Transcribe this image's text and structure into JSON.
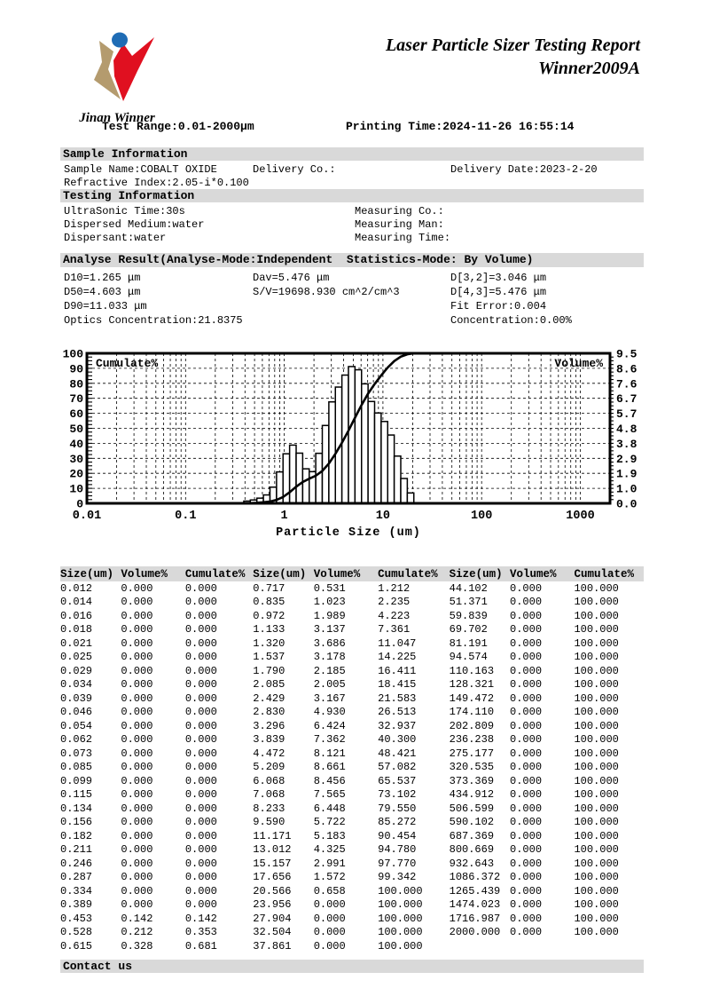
{
  "header": {
    "logo_text": "Jinan Winner",
    "logo_colors": {
      "blue": "#1f6cb5",
      "red": "#e01020",
      "tan": "#b49b6e"
    },
    "title_line1": "Laser Particle Sizer Testing Report",
    "title_line2": "Winner2009A",
    "test_range": "Test Range:0.01-2000μm",
    "printing_time": "Printing Time:2024-11-26 16:55:14"
  },
  "sample_info": {
    "section_title": "Sample Information",
    "sample_name": "Sample Name:COBALT OXIDE",
    "delivery_co": "Delivery Co.:",
    "delivery_date": "Delivery Date:2023-2-20",
    "refractive_index": "Refractive Index:2.05-i*0.100"
  },
  "testing_info": {
    "section_title": "Testing Information",
    "ultrasonic_time": "UltraSonic Time:30s",
    "dispersed_medium": "Dispersed Medium:water",
    "dispersant": "Dispersant:water",
    "measuring_co": "Measuring Co.:",
    "measuring_man": "Measuring Man:",
    "measuring_time": "Measuring Time:"
  },
  "analyse_result": {
    "section_title": "Analyse Result(Analyse-Mode:Independent  Statistics-Mode: By Volume)",
    "d10": "D10=1.265 μm",
    "d50": "D50=4.603 μm",
    "d90": "D90=11.033 μm",
    "optics_concentration": "Optics Concentration:21.8375",
    "dav": "Dav=5.476 μm",
    "sv": "S/V=19698.930 cm^2/cm^3",
    "d32": "D[3,2]=3.046 μm",
    "d43": "D[4,3]=5.476 μm",
    "fit_error": "Fit Error:0.004",
    "concentration": "Concentration:0.00%"
  },
  "chart_data": {
    "type": "bar",
    "subtype": "log-histogram with cumulative line",
    "title": "",
    "xlabel": "Particle Size (um)",
    "ylabel_left": "Cumulate%",
    "ylabel_right": "Volume%",
    "x_scale": "log",
    "xlim": [
      0.01,
      2000
    ],
    "ylim_left": [
      0,
      100
    ],
    "ylim_right": [
      0,
      9.5
    ],
    "grid": true,
    "x_ticks": [
      "0.01",
      "0.1",
      "1",
      "10",
      "100",
      "1000"
    ],
    "left_tick_labels": [
      "100",
      "90",
      "80",
      "70",
      "60",
      "50",
      "40",
      "30",
      "20",
      "10",
      "0"
    ],
    "right_tick_labels": [
      "9.5",
      "8.6",
      "7.6",
      "6.7",
      "5.7",
      "4.8",
      "3.8",
      "2.9",
      "1.9",
      "1.0",
      "0.0"
    ],
    "sizes_um": [
      0.012,
      0.014,
      0.016,
      0.018,
      0.021,
      0.025,
      0.029,
      0.034,
      0.039,
      0.046,
      0.054,
      0.062,
      0.073,
      0.085,
      0.099,
      0.115,
      0.134,
      0.156,
      0.182,
      0.211,
      0.246,
      0.287,
      0.334,
      0.389,
      0.453,
      0.528,
      0.615,
      0.717,
      0.835,
      0.972,
      1.133,
      1.32,
      1.537,
      1.79,
      2.085,
      2.429,
      2.83,
      3.296,
      3.839,
      4.472,
      5.209,
      6.068,
      7.068,
      8.233,
      9.59,
      11.171,
      13.012,
      15.157,
      17.656,
      20.566,
      23.956,
      27.904,
      32.504,
      37.861,
      44.102,
      51.371,
      59.839,
      69.702,
      81.191,
      94.574,
      110.163,
      128.321,
      149.472,
      174.11,
      202.809,
      236.238,
      275.177,
      320.535,
      373.369,
      434.912,
      506.599,
      590.102,
      687.369,
      800.669,
      932.643,
      1086.372,
      1265.439,
      1474.023,
      1716.987,
      2000.0
    ],
    "series": [
      {
        "name": "Volume%",
        "render": "bar",
        "axis": "right",
        "values": [
          0,
          0,
          0,
          0,
          0,
          0,
          0,
          0,
          0,
          0,
          0,
          0,
          0,
          0,
          0,
          0,
          0,
          0,
          0,
          0,
          0,
          0,
          0,
          0,
          0.142,
          0.212,
          0.328,
          0.531,
          1.023,
          1.989,
          3.137,
          3.686,
          3.178,
          2.185,
          2.005,
          3.167,
          4.93,
          6.424,
          7.362,
          8.121,
          8.661,
          8.456,
          7.565,
          6.448,
          5.722,
          5.183,
          4.325,
          2.991,
          1.572,
          0.658,
          0,
          0,
          0,
          0,
          0,
          0,
          0,
          0,
          0,
          0,
          0,
          0,
          0,
          0,
          0,
          0,
          0,
          0,
          0,
          0,
          0,
          0,
          0,
          0,
          0,
          0,
          0,
          0,
          0,
          0
        ]
      },
      {
        "name": "Cumulate%",
        "render": "line",
        "axis": "left",
        "values": [
          0,
          0,
          0,
          0,
          0,
          0,
          0,
          0,
          0,
          0,
          0,
          0,
          0,
          0,
          0,
          0,
          0,
          0,
          0,
          0,
          0,
          0,
          0,
          0,
          0.142,
          0.353,
          0.681,
          1.212,
          2.235,
          4.223,
          7.361,
          11.047,
          14.225,
          16.411,
          18.415,
          21.583,
          26.513,
          32.937,
          40.3,
          48.421,
          57.082,
          65.537,
          73.102,
          79.55,
          85.272,
          90.454,
          94.78,
          97.77,
          99.342,
          100,
          100,
          100,
          100,
          100,
          100,
          100,
          100,
          100,
          100,
          100,
          100,
          100,
          100,
          100,
          100,
          100,
          100,
          100,
          100,
          100,
          100,
          100,
          100,
          100,
          100,
          100,
          100,
          100,
          100,
          100
        ]
      }
    ]
  },
  "table": {
    "headers": [
      "Size(um)",
      "Volume%",
      "Cumulate%"
    ],
    "groups": 3,
    "rows_per_group": 27
  },
  "footer": {
    "section_title": "Contact us"
  }
}
